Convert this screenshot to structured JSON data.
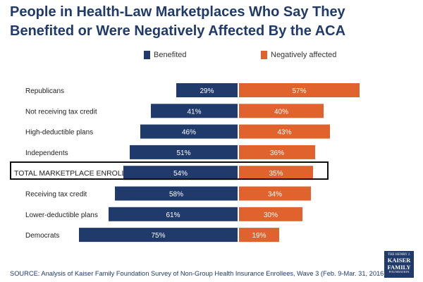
{
  "chart_data": {
    "type": "bar",
    "orientation": "horizontal-diverging",
    "title": "People in Health-Law Marketplaces Who Say They Benefited or Were Negatively Affected By the ACA",
    "categories": [
      "Republicans",
      "Not receiving tax credit",
      "High-deductible plans",
      "Independents",
      "TOTAL MARKETPLACE ENROLLEES",
      "Receiving tax credit",
      "Lower-deductible plans",
      "Democrats"
    ],
    "series": [
      {
        "name": "Benefited",
        "color": "#1f3a6b",
        "values": [
          29,
          41,
          46,
          51,
          54,
          58,
          61,
          75
        ]
      },
      {
        "name": "Negatively affected",
        "color": "#e0622c",
        "values": [
          57,
          40,
          43,
          36,
          35,
          34,
          30,
          19
        ]
      }
    ],
    "value_suffix": "%",
    "highlighted_category": "TOTAL MARKETPLACE ENROLLEES",
    "legend_position": "top"
  },
  "source": "SOURCE: Analysis of Kaiser Family Foundation Survey of Non-Group Health Insurance Enrollees, Wave 3 (Feb. 9-Mar. 31, 2016)",
  "logo": {
    "line1": "THE HENRY J.",
    "line2a": "KAISER",
    "line2b": "FAMILY",
    "line3": "FOUNDATION"
  }
}
